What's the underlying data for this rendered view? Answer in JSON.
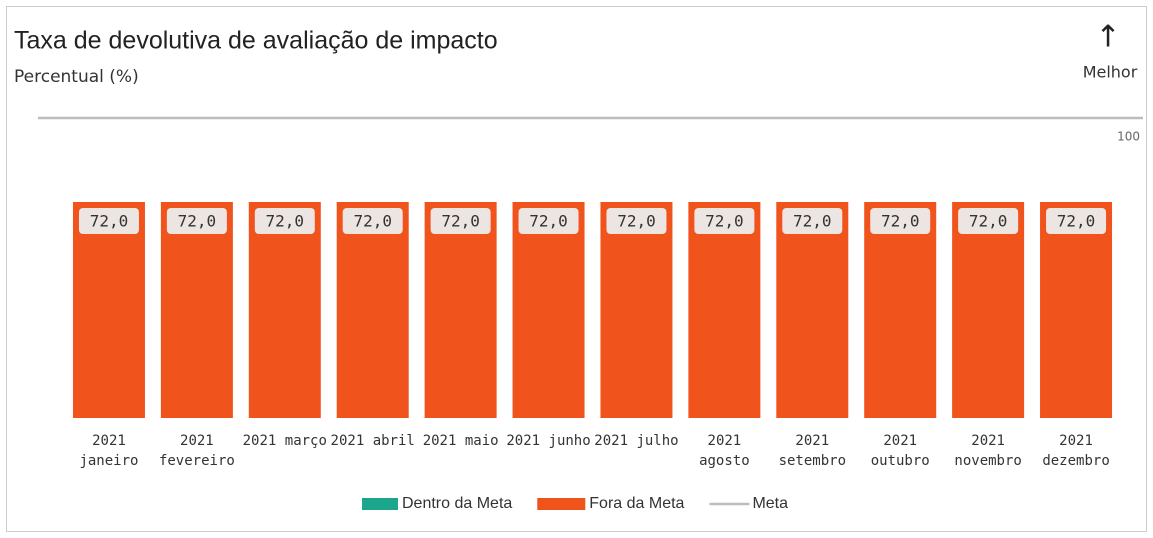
{
  "chart_data": {
    "type": "bar",
    "title": "Taxa de devolutiva de avaliação de impacto",
    "subtitle": "Percentual (%)",
    "direction_label": "Melhor",
    "direction_arrow": "↑",
    "categories": [
      "2021 janeiro",
      "2021 fevereiro",
      "2021 março",
      "2021 abril",
      "2021 maio",
      "2021 junho",
      "2021 julho",
      "2021 agosto",
      "2021 setembro",
      "2021 outubro",
      "2021 novembro",
      "2021 dezembro"
    ],
    "series": [
      {
        "name": "Dentro da Meta",
        "color": "#1aa58c",
        "values": [
          null,
          null,
          null,
          null,
          null,
          null,
          null,
          null,
          null,
          null,
          null,
          null
        ]
      },
      {
        "name": "Fora da Meta",
        "color": "#f0531c",
        "values": [
          72,
          72,
          72,
          72,
          72,
          72,
          72,
          72,
          72,
          72,
          72,
          72
        ],
        "value_labels": [
          "72,0",
          "72,0",
          "72,0",
          "72,0",
          "72,0",
          "72,0",
          "72,0",
          "72,0",
          "72,0",
          "72,0",
          "72,0",
          "72,0"
        ]
      },
      {
        "name": "Meta",
        "color": "#bdbdbd",
        "kind": "line",
        "values": [
          100,
          100,
          100,
          100,
          100,
          100,
          100,
          100,
          100,
          100,
          100,
          100
        ]
      }
    ],
    "ylim": [
      0,
      100
    ],
    "yticks": [
      100
    ]
  }
}
